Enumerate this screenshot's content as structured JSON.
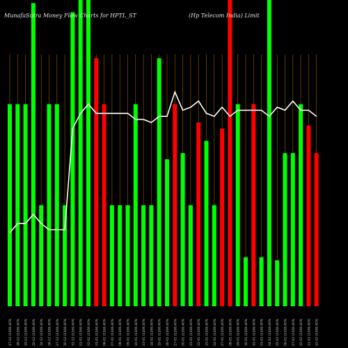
{
  "header": {
    "left": "MunafaSutra  Money Flow  Charts for HPTL_ST",
    "right": "(Hp Telecom India) Limit"
  },
  "chart_data": {
    "type": "bar",
    "colors": {
      "up": "#00ff00",
      "down": "#ff0000",
      "line": "#ffffff",
      "grid": "#a05a00",
      "background": "#000000",
      "label": "#c8c8c8"
    },
    "ylim": [
      0,
      100
    ],
    "categories": [
      "17-12 (1169.40%",
      "18-12 (1169.40%",
      "19-12 (1169.40%",
      "20-12 (1169.40%",
      "24-12 (1169.40%",
      "26-12 (1169.40%",
      "27-12 (1169.40%",
      "30-12 (1169.40%",
      "31-12 (1169.40%",
      "01-01 (1169.40%",
      "02-01 (1169.40%",
      "03-01 (1169.40%",
      "06-01 (1169.40%",
      "07-01 (1169.40%",
      "08-01 (1169.40%",
      "09-01 (1169.40%",
      "10-01 (1169.40%",
      "13-01 (1169.40%",
      "14-01 (1169.40%",
      "15-01 (1169.40%",
      "16-01 (1169.40%",
      "17-01 (1169.40%",
      "20-01 (1169.40%",
      "21-01 (1169.40%",
      "22-01 (1169.40%",
      "23-01 (1169.40%",
      "24-01 (1169.40%",
      "27-01 (1169.40%",
      "28-01 (1169.40%",
      "29-01 (1169.40%",
      "30-01 (1169.40%",
      "31-01 (1169.40%",
      "03-02 (1169.40%",
      "04-02 (1169.40%",
      "05-02 (1169.40%",
      "06-02 (1169.40%",
      "07-02 (1169.40%",
      "10-02 (1169.40%",
      "11-02 (1169.40%",
      "12-02 (1169.40%"
    ],
    "series": [
      {
        "type": "bar",
        "values": [
          66,
          66,
          66,
          99,
          33,
          66,
          66,
          33,
          96,
          100,
          100,
          81,
          66,
          33,
          33,
          33,
          66,
          33,
          33,
          81,
          48,
          66,
          50,
          33,
          60,
          54,
          33,
          58,
          100,
          66,
          16,
          66,
          16,
          100,
          15,
          50,
          50,
          66,
          59,
          50
        ],
        "directions": [
          "up",
          "up",
          "up",
          "up",
          "up",
          "up",
          "up",
          "up",
          "up",
          "up",
          "up",
          "down",
          "down",
          "up",
          "up",
          "up",
          "up",
          "up",
          "up",
          "up",
          "up",
          "down",
          "up",
          "up",
          "down",
          "up",
          "up",
          "down",
          "down",
          "up",
          "up",
          "down",
          "up",
          "up",
          "up",
          "up",
          "up",
          "up",
          "down",
          "down"
        ]
      },
      {
        "type": "line",
        "values": [
          24,
          27,
          27,
          30,
          27,
          25,
          25,
          25,
          58,
          63,
          66,
          63,
          63,
          63,
          63,
          63,
          61,
          61,
          60,
          62,
          62,
          70,
          64,
          65,
          67,
          63,
          62,
          65,
          62,
          64,
          64,
          64,
          64,
          62,
          65,
          64,
          67,
          64,
          64,
          62
        ]
      }
    ]
  }
}
